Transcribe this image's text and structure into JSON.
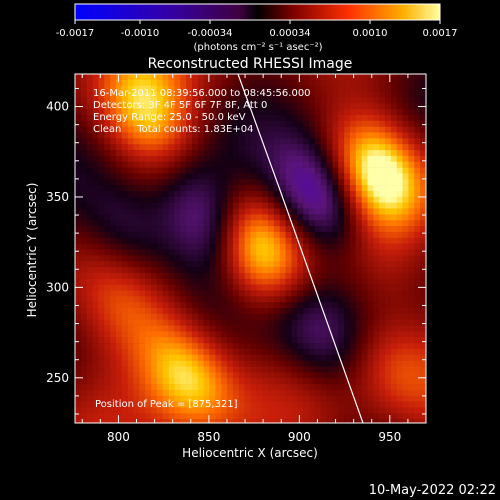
{
  "colorbar": {
    "tick_labels": [
      "-0.0017",
      "-0.0010",
      "-0.00034",
      "0.00034",
      "0.0010",
      "0.0017"
    ],
    "units": "(photons cm⁻² s⁻¹ asec⁻²)"
  },
  "image": {
    "title": "Reconstructed RHESSI Image",
    "info_lines": [
      "16-Mar-2011 08:39:56.000 to 08:45:56.000",
      "Detectors: 3F 4F 5F 6F 7F 8F, Att 0",
      "Energy Range: 25.0 - 50.0 keV",
      "Clean     Total counts: 1.83E+04"
    ],
    "peak_label": "Position of Peak = [875,321]",
    "x_axis": {
      "label": "Heliocentric X (arcsec)",
      "ticks": [
        "800",
        "850",
        "900",
        "950"
      ]
    },
    "y_axis": {
      "label": "Heliocentric Y (arcsec)",
      "ticks": [
        "250",
        "300",
        "350",
        "400"
      ]
    },
    "blobs": [
      {
        "x": 875,
        "y": 322,
        "level": 1.0
      },
      {
        "x": 945,
        "y": 362,
        "level": 1.0
      },
      {
        "x": 838,
        "y": 252,
        "level": 0.85
      },
      {
        "x": 815,
        "y": 398,
        "level": 0.7
      },
      {
        "x": 805,
        "y": 290,
        "level": 0.35
      },
      {
        "x": 910,
        "y": 350,
        "level": -1.0
      },
      {
        "x": 850,
        "y": 335,
        "level": -0.8
      },
      {
        "x": 805,
        "y": 330,
        "level": -0.55
      },
      {
        "x": 910,
        "y": 275,
        "level": -0.55
      },
      {
        "x": 950,
        "y": 310,
        "level": 0.3
      },
      {
        "x": 955,
        "y": 255,
        "level": 0.4
      }
    ]
  },
  "timestamp": "10-May-2022 02:22"
}
